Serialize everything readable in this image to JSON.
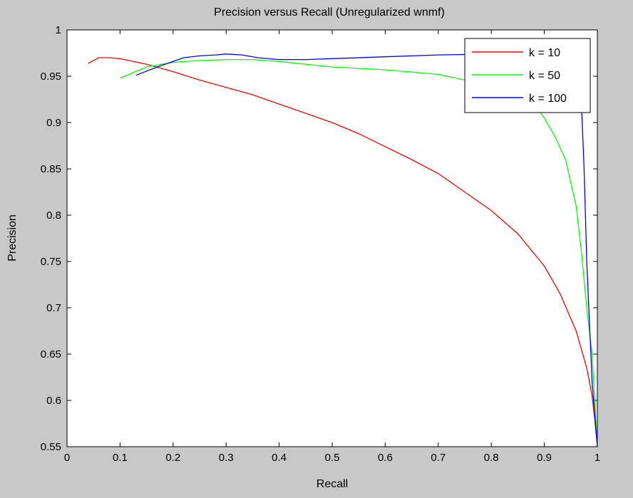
{
  "chart_data": {
    "type": "line",
    "title": "Precision versus Recall (Unregularized wnmf)",
    "xlabel": "Recall",
    "ylabel": "Precision",
    "xlim": [
      0,
      1
    ],
    "ylim": [
      0.55,
      1
    ],
    "xticks": [
      "0",
      "0.1",
      "0.2",
      "0.3",
      "0.4",
      "0.5",
      "0.6",
      "0.7",
      "0.8",
      "0.9",
      "1"
    ],
    "yticks": [
      "0.55",
      "0.6",
      "0.65",
      "0.7",
      "0.75",
      "0.8",
      "0.85",
      "0.9",
      "0.95",
      "1"
    ],
    "grid": false,
    "legend_position": "top-right",
    "series": [
      {
        "name": "k = 10",
        "color": "#ff0000",
        "x": [
          0.04,
          0.06,
          0.08,
          0.1,
          0.15,
          0.2,
          0.25,
          0.3,
          0.35,
          0.4,
          0.45,
          0.5,
          0.55,
          0.6,
          0.65,
          0.7,
          0.75,
          0.8,
          0.85,
          0.9,
          0.93,
          0.96,
          0.98,
          0.99,
          0.995,
          1.0
        ],
        "y": [
          0.964,
          0.97,
          0.97,
          0.969,
          0.963,
          0.955,
          0.946,
          0.938,
          0.93,
          0.92,
          0.91,
          0.9,
          0.888,
          0.874,
          0.86,
          0.845,
          0.825,
          0.805,
          0.78,
          0.745,
          0.715,
          0.675,
          0.635,
          0.605,
          0.58,
          0.55
        ]
      },
      {
        "name": "k = 50",
        "color": "#00ff00",
        "x": [
          0.1,
          0.15,
          0.2,
          0.25,
          0.3,
          0.35,
          0.4,
          0.5,
          0.6,
          0.7,
          0.8,
          0.85,
          0.88,
          0.9,
          0.92,
          0.94,
          0.96,
          0.97,
          0.98,
          0.99,
          0.995,
          1.0
        ],
        "y": [
          0.948,
          0.96,
          0.965,
          0.967,
          0.968,
          0.968,
          0.966,
          0.96,
          0.957,
          0.952,
          0.94,
          0.93,
          0.92,
          0.905,
          0.885,
          0.86,
          0.81,
          0.76,
          0.7,
          0.65,
          0.6,
          0.55
        ]
      },
      {
        "name": "k = 100",
        "color": "#0000ff",
        "x": [
          0.13,
          0.17,
          0.2,
          0.22,
          0.25,
          0.28,
          0.3,
          0.33,
          0.36,
          0.4,
          0.45,
          0.5,
          0.6,
          0.7,
          0.8,
          0.9,
          0.96,
          0.97,
          0.975,
          0.98,
          0.99,
          1.0
        ],
        "y": [
          0.951,
          0.96,
          0.966,
          0.97,
          0.972,
          0.973,
          0.974,
          0.973,
          0.97,
          0.968,
          0.968,
          0.969,
          0.971,
          0.973,
          0.974,
          0.974,
          0.974,
          0.92,
          0.85,
          0.75,
          0.62,
          0.55
        ]
      }
    ]
  }
}
